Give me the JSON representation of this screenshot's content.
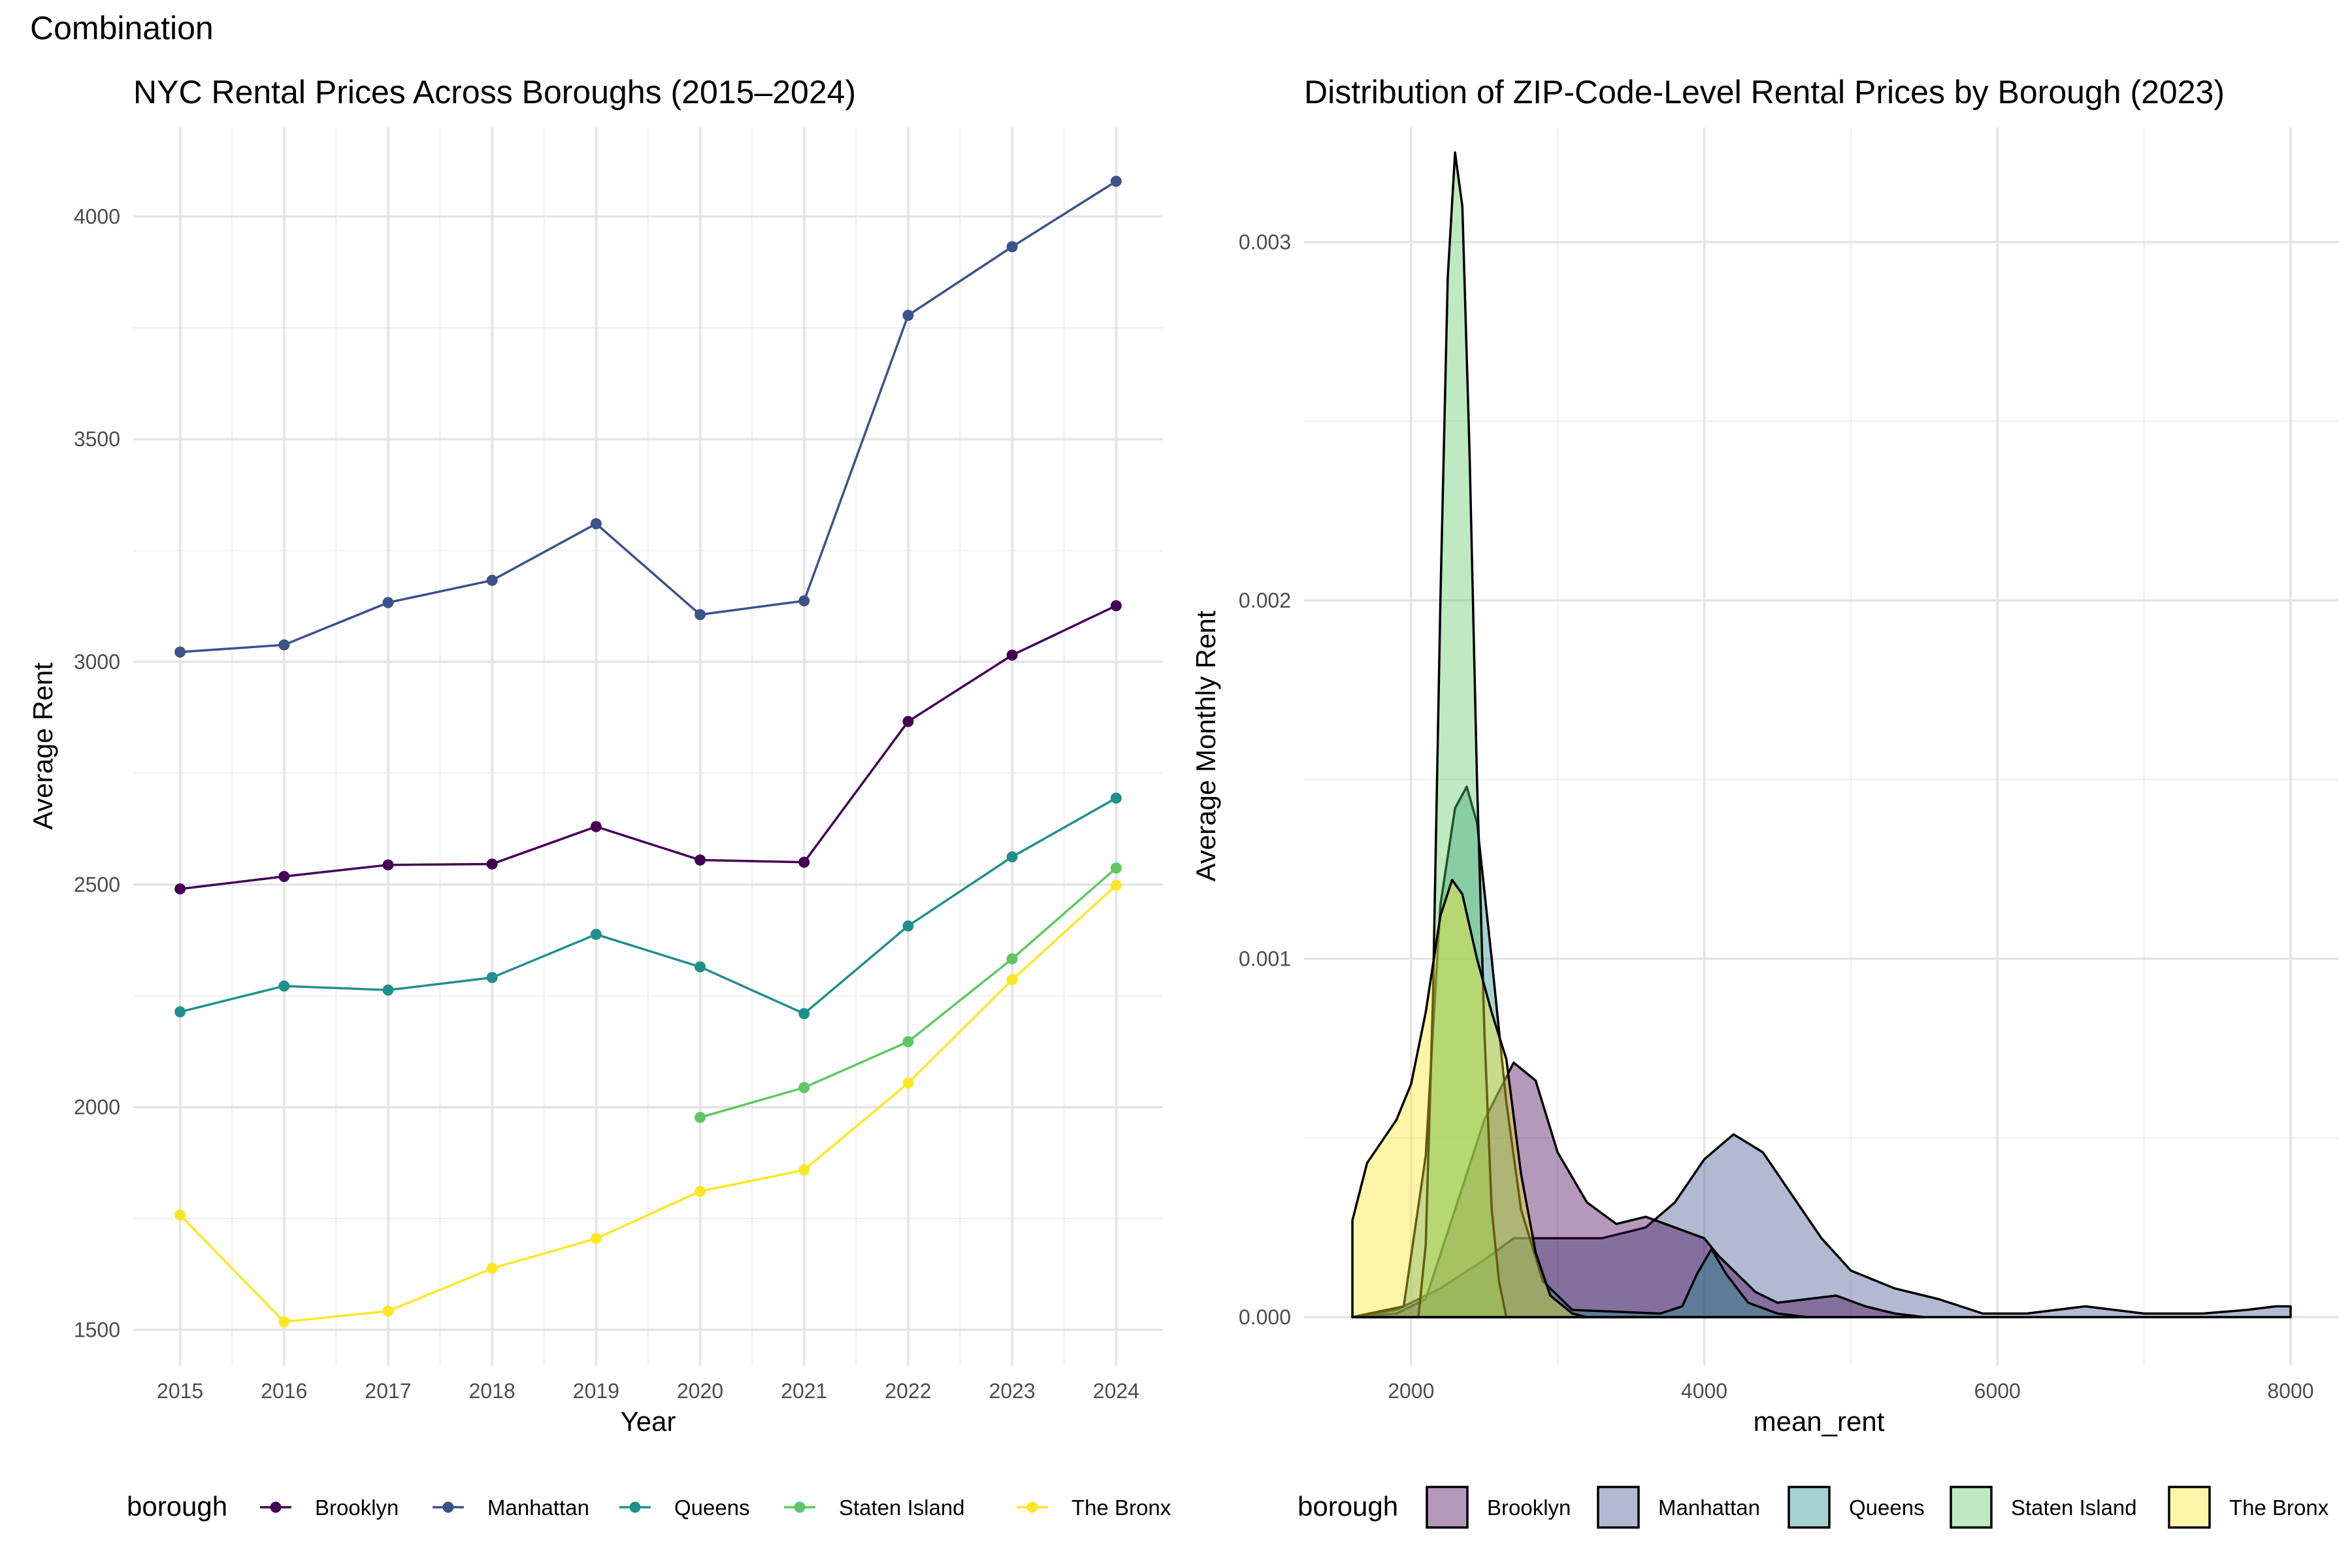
{
  "page_title": "Combination",
  "chart_data": [
    {
      "type": "line",
      "title": "NYC Rental Prices Across Boroughs (2015–2024)",
      "xlabel": "Year",
      "ylabel": "Average Rent",
      "x": [
        2015,
        2016,
        2017,
        2018,
        2019,
        2020,
        2021,
        2022,
        2023,
        2024
      ],
      "xticks": [
        "2015",
        "2016",
        "2017",
        "2018",
        "2019",
        "2020",
        "2021",
        "2022",
        "2023",
        "2024"
      ],
      "yticks": [
        "1500",
        "2000",
        "2500",
        "3000",
        "3500",
        "4000"
      ],
      "ylim": [
        1420,
        4200
      ],
      "legend_title": "borough",
      "legend_position": "bottom",
      "grid": true,
      "series": [
        {
          "name": "Brooklyn",
          "color": "#440154",
          "values": [
            2490,
            2518,
            2544,
            2546,
            2630,
            2555,
            2550,
            2866,
            3015,
            3126
          ]
        },
        {
          "name": "Manhattan",
          "color": "#3B528B",
          "values": [
            3022,
            3038,
            3133,
            3183,
            3310,
            3106,
            3137,
            3778,
            3932,
            4079
          ]
        },
        {
          "name": "Queens",
          "color": "#21908C",
          "values": [
            2214,
            2272,
            2263,
            2291,
            2388,
            2315,
            2210,
            2407,
            2562,
            2694
          ]
        },
        {
          "name": "Staten Island",
          "color": "#5DC863",
          "values": [
            null,
            null,
            null,
            null,
            null,
            1977,
            2044,
            2147,
            2333,
            2537
          ]
        },
        {
          "name": "The Bronx",
          "color": "#FDE725",
          "values": [
            1758,
            1518,
            1542,
            1638,
            1705,
            1811,
            1859,
            2054,
            2286,
            2498
          ]
        }
      ]
    },
    {
      "type": "area",
      "title": "Distribution of ZIP-Code-Level Rental Prices by Borough (2023)",
      "xlabel": "mean_rent",
      "ylabel": "Average Monthly Rent",
      "xticks": [
        "2000",
        "4000",
        "6000",
        "8000"
      ],
      "yticks": [
        "0.000",
        "0.001",
        "0.002",
        "0.003"
      ],
      "xlim": [
        1600,
        8000
      ],
      "ylim": [
        0,
        0.0033
      ],
      "legend_title": "borough",
      "legend_position": "bottom",
      "grid": true,
      "series": [
        {
          "name": "Manhattan",
          "color": "#3B528B",
          "points": [
            [
              1600,
              0
            ],
            [
              1900,
              2e-05
            ],
            [
              2200,
              8e-05
            ],
            [
              2500,
              0.00016
            ],
            [
              2700,
              0.00022
            ],
            [
              3000,
              0.00022
            ],
            [
              3300,
              0.00022
            ],
            [
              3600,
              0.00025
            ],
            [
              3800,
              0.00032
            ],
            [
              4000,
              0.00044
            ],
            [
              4200,
              0.00051
            ],
            [
              4400,
              0.00046
            ],
            [
              4600,
              0.00034
            ],
            [
              4800,
              0.00022
            ],
            [
              5000,
              0.00013
            ],
            [
              5300,
              8e-05
            ],
            [
              5600,
              5e-05
            ],
            [
              5900,
              1e-05
            ],
            [
              6200,
              1e-05
            ],
            [
              6600,
              3e-05
            ],
            [
              7000,
              1e-05
            ],
            [
              7400,
              1e-05
            ],
            [
              7700,
              2e-05
            ],
            [
              7900,
              3e-05
            ],
            [
              8000,
              3e-05
            ],
            [
              8000,
              0
            ]
          ]
        },
        {
          "name": "Brooklyn",
          "color": "#440154",
          "points": [
            [
              1600,
              0
            ],
            [
              1900,
              1e-05
            ],
            [
              2100,
              5e-05
            ],
            [
              2300,
              0.0003
            ],
            [
              2500,
              0.00055
            ],
            [
              2700,
              0.00071
            ],
            [
              2850,
              0.00066
            ],
            [
              3000,
              0.00046
            ],
            [
              3200,
              0.00032
            ],
            [
              3400,
              0.00026
            ],
            [
              3600,
              0.00028
            ],
            [
              3800,
              0.00025
            ],
            [
              4000,
              0.00022
            ],
            [
              4100,
              0.00017
            ],
            [
              4200,
              0.00013
            ],
            [
              4350,
              7e-05
            ],
            [
              4500,
              4e-05
            ],
            [
              4700,
              5e-05
            ],
            [
              4900,
              6e-05
            ],
            [
              5100,
              3e-05
            ],
            [
              5300,
              1e-05
            ],
            [
              5500,
              0
            ]
          ]
        },
        {
          "name": "Queens",
          "color": "#21908C",
          "points": [
            [
              1600,
              0
            ],
            [
              1950,
              3e-05
            ],
            [
              2100,
              0.00045
            ],
            [
              2200,
              0.00115
            ],
            [
              2300,
              0.00142
            ],
            [
              2380,
              0.00148
            ],
            [
              2450,
              0.00138
            ],
            [
              2550,
              0.001
            ],
            [
              2650,
              0.0006
            ],
            [
              2750,
              0.0003
            ],
            [
              2900,
              0.0001
            ],
            [
              3100,
              2e-05
            ],
            [
              3700,
              1e-05
            ],
            [
              3850,
              3e-05
            ],
            [
              3950,
              0.00012
            ],
            [
              4050,
              0.00019
            ],
            [
              4150,
              0.00012
            ],
            [
              4300,
              4e-05
            ],
            [
              4500,
              1e-05
            ],
            [
              4700,
              0
            ]
          ]
        },
        {
          "name": "Staten Island",
          "color": "#5DC863",
          "points": [
            [
              2050,
              0
            ],
            [
              2100,
              0.0002
            ],
            [
              2150,
              0.0009
            ],
            [
              2200,
              0.002
            ],
            [
              2250,
              0.0029
            ],
            [
              2300,
              0.00325
            ],
            [
              2350,
              0.0031
            ],
            [
              2400,
              0.0024
            ],
            [
              2450,
              0.0015
            ],
            [
              2500,
              0.0008
            ],
            [
              2550,
              0.0003
            ],
            [
              2600,
              0.0001
            ],
            [
              2650,
              0
            ]
          ]
        },
        {
          "name": "The Bronx",
          "color": "#FDE725",
          "points": [
            [
              1600,
              0.00027
            ],
            [
              1700,
              0.00043
            ],
            [
              1800,
              0.00049
            ],
            [
              1900,
              0.00055
            ],
            [
              2000,
              0.00065
            ],
            [
              2100,
              0.00085
            ],
            [
              2200,
              0.00112
            ],
            [
              2280,
              0.00122
            ],
            [
              2350,
              0.00118
            ],
            [
              2450,
              0.001
            ],
            [
              2550,
              0.00085
            ],
            [
              2650,
              0.00072
            ],
            [
              2750,
              0.0004
            ],
            [
              2850,
              0.00018
            ],
            [
              2950,
              6e-05
            ],
            [
              3100,
              1e-05
            ],
            [
              3200,
              0
            ]
          ]
        }
      ]
    }
  ]
}
